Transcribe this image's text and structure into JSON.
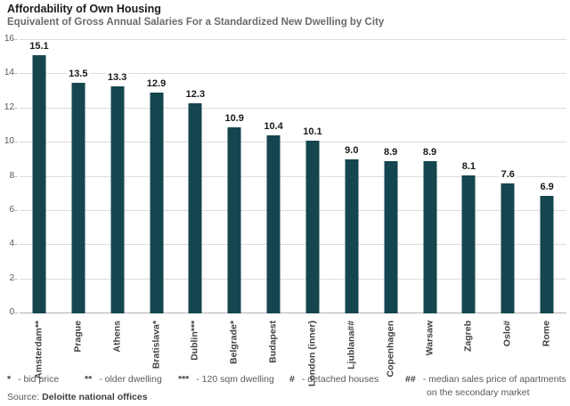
{
  "header": {
    "title": "Affordability of Own Housing",
    "subtitle": "Equivalent of Gross Annual Salaries For a Standardized New Dwelling by City"
  },
  "chart_data": {
    "type": "bar",
    "title": "Affordability of Own Housing",
    "subtitle": "Equivalent of Gross Annual Salaries For a Standardized New Dwelling by City",
    "categories": [
      "Amsterdam**",
      "Prague",
      "Athens",
      "Bratislava*",
      "Dublin***",
      "Belgrade*",
      "Budapest",
      "London (inner)",
      "Ljublana##",
      "Copenhagen",
      "Warsaw",
      "Zagreb",
      "Oslo#",
      "Rome"
    ],
    "values": [
      15.1,
      13.5,
      13.3,
      12.9,
      12.3,
      10.9,
      10.4,
      10.1,
      9.0,
      8.9,
      8.9,
      8.1,
      7.6,
      6.9
    ],
    "value_labels": [
      "15.1",
      "13.5",
      "13.3",
      "12.9",
      "12.3",
      "10.9",
      "10.4",
      "10.1",
      "9.0",
      "8.9",
      "8.9",
      "8.1",
      "7.6",
      "6.9"
    ],
    "xlabel": "",
    "ylabel": "",
    "ylim": [
      0,
      16
    ],
    "yticks": [
      0,
      2,
      4,
      6,
      8,
      10,
      12,
      14,
      16
    ],
    "grid": true,
    "legend": "none",
    "bar_color": "#15464f",
    "gridline_color": "#dcdcdc",
    "baseline_color": "#b3b3b3"
  },
  "footnotes": [
    {
      "symbol": "*",
      "text": "- bid price"
    },
    {
      "symbol": "**",
      "text": "- older dwelling"
    },
    {
      "symbol": "***",
      "text": "- 120 sqm dwelling"
    },
    {
      "symbol": "#",
      "text": "- detached houses"
    },
    {
      "symbol": "##",
      "text": "- median sales price of apartments",
      "text_line2": "on the secondary market"
    }
  ],
  "source": {
    "label": "Source: ",
    "value": "Deloitte national offices"
  }
}
